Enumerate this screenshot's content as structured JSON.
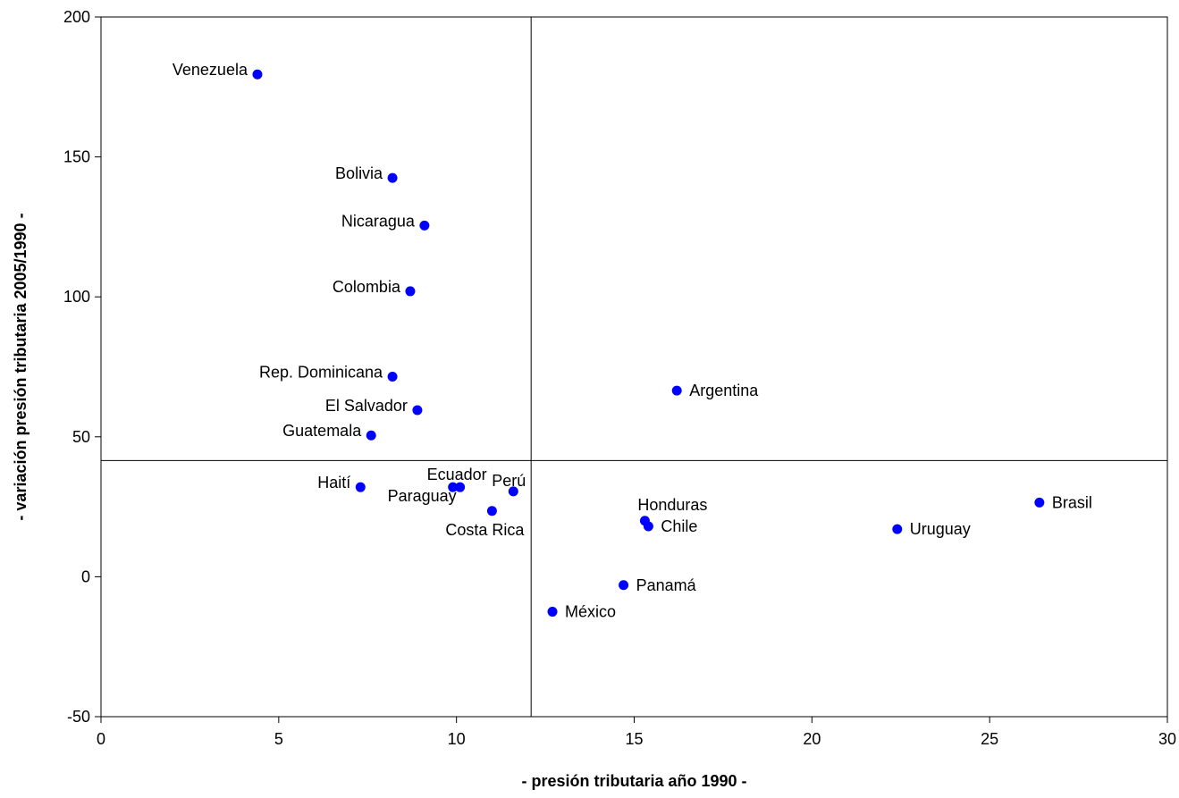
{
  "chart_data": {
    "type": "scatter",
    "xlabel": "- presión tributaria año 1990 -",
    "ylabel": "- variación presión tributaria 2005/1990 -",
    "xlim": [
      0,
      30
    ],
    "ylim": [
      -50,
      200
    ],
    "xticks": [
      0,
      5,
      10,
      15,
      20,
      25,
      30
    ],
    "yticks": [
      -50,
      0,
      50,
      100,
      150,
      200
    ],
    "grid": false,
    "legend": "none",
    "reference_lines": {
      "x": 12.1,
      "y": 41.5
    },
    "marker_color": "#0000ff",
    "points": [
      {
        "label": "Venezuela",
        "x": 4.4,
        "y": 179.5,
        "pos": "left"
      },
      {
        "label": "Bolivia",
        "x": 8.2,
        "y": 142.5,
        "pos": "left"
      },
      {
        "label": "Nicaragua",
        "x": 9.1,
        "y": 125.5,
        "pos": "left"
      },
      {
        "label": "Colombia",
        "x": 8.7,
        "y": 102,
        "pos": "left"
      },
      {
        "label": "Rep. Dominicana",
        "x": 8.2,
        "y": 71.5,
        "pos": "left"
      },
      {
        "label": "El Salvador",
        "x": 8.9,
        "y": 59.5,
        "pos": "left"
      },
      {
        "label": "Guatemala",
        "x": 7.6,
        "y": 50.5,
        "pos": "left"
      },
      {
        "label": "Argentina",
        "x": 16.2,
        "y": 66.5,
        "pos": "right"
      },
      {
        "label": "Haití",
        "x": 7.3,
        "y": 32,
        "pos": "left"
      },
      {
        "label": "Paraguay",
        "x": 9.9,
        "y": 32,
        "pos": "below-left"
      },
      {
        "label": "Ecuador",
        "x": 10.1,
        "y": 32,
        "pos": "above-left"
      },
      {
        "label": "Perú",
        "x": 11.6,
        "y": 30.5,
        "pos": "above-left"
      },
      {
        "label": "Costa Rica",
        "x": 11.0,
        "y": 23.5,
        "pos": "below-left"
      },
      {
        "label": "Honduras",
        "x": 15.3,
        "y": 20,
        "pos": "above-left"
      },
      {
        "label": "Chile",
        "x": 15.4,
        "y": 18,
        "pos": "right"
      },
      {
        "label": "Uruguay",
        "x": 22.4,
        "y": 17,
        "pos": "right"
      },
      {
        "label": "Brasil",
        "x": 26.4,
        "y": 26.5,
        "pos": "right"
      },
      {
        "label": "Panamá",
        "x": 14.7,
        "y": -3,
        "pos": "right"
      },
      {
        "label": "México",
        "x": 12.7,
        "y": -12.5,
        "pos": "right"
      }
    ]
  }
}
